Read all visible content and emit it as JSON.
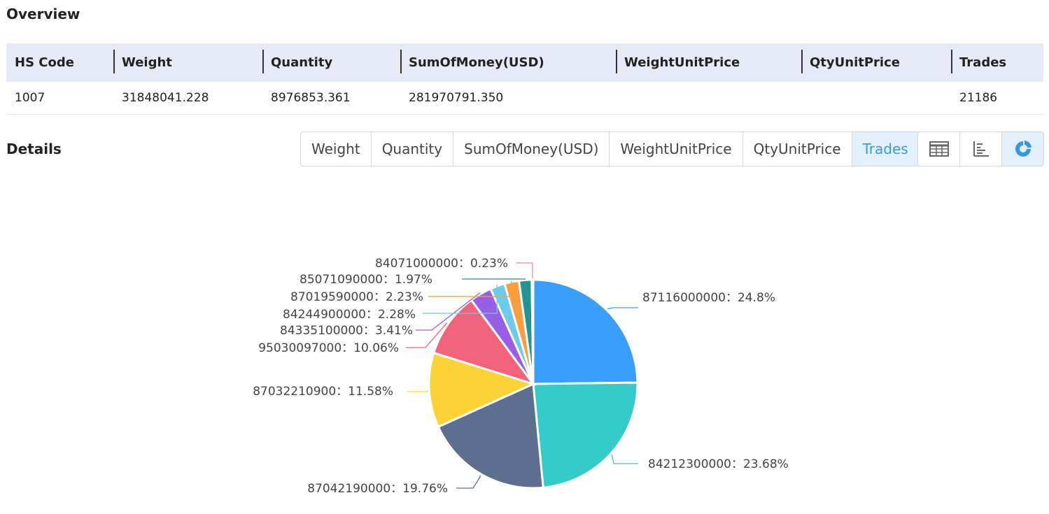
{
  "overview": {
    "title": "Overview",
    "columns": [
      "HS Code",
      "Weight",
      "Quantity",
      "SumOfMoney(USD)",
      "WeightUnitPrice",
      "QtyUnitPrice",
      "Trades"
    ],
    "row": [
      "1007",
      "31848041.228",
      "8976853.361",
      "281970791.350",
      "",
      "",
      "21186"
    ]
  },
  "details": {
    "title": "Details",
    "tabs": [
      "Weight",
      "Quantity",
      "SumOfMoney(USD)",
      "WeightUnitPrice",
      "QtyUnitPrice",
      "Trades"
    ],
    "active_tab": "Trades",
    "views": [
      {
        "icon": "table-icon",
        "active": false
      },
      {
        "icon": "bar-chart-icon",
        "active": false
      },
      {
        "icon": "pie-chart-icon",
        "active": true
      }
    ]
  },
  "colors": {
    "accent": "#3a9ad9",
    "active_tab_bg": "#e2f0fb",
    "header_bg": "#e5eaf6"
  },
  "chart_data": {
    "type": "pie",
    "title": "",
    "label_separator": "：",
    "slices": [
      {
        "name": "87116000000",
        "value": 24.8,
        "label": "24.8%",
        "color": "#3a9ffa"
      },
      {
        "name": "84212300000",
        "value": 23.68,
        "label": "23.68%",
        "color": "#35cbcb"
      },
      {
        "name": "87042190000",
        "value": 19.76,
        "label": "19.76%",
        "color": "#5d6f8f"
      },
      {
        "name": "87032210900",
        "value": 11.58,
        "label": "11.58%",
        "color": "#fad337"
      },
      {
        "name": "95030097000",
        "value": 10.06,
        "label": "10.06%",
        "color": "#f2637b"
      },
      {
        "name": "84335100000",
        "value": 3.41,
        "label": "3.41%",
        "color": "#975fe4"
      },
      {
        "name": "84244900000",
        "value": 2.28,
        "label": "2.28%",
        "color": "#6ccbea"
      },
      {
        "name": "87019590000",
        "value": 2.23,
        "label": "2.23%",
        "color": "#fa9d3c"
      },
      {
        "name": "85071090000",
        "value": 1.97,
        "label": "1.97%",
        "color": "#229593"
      },
      {
        "name": "84071000000",
        "value": 0.23,
        "label": "0.23%",
        "color": "#ef89b0"
      }
    ]
  }
}
